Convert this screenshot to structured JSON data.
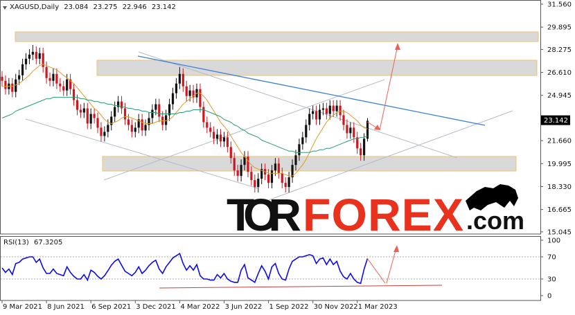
{
  "chart_data": [
    {
      "type": "candlestick",
      "title": "XAGUSD,Daily",
      "header_values": [
        23.084,
        23.275,
        22.946,
        23.142
      ],
      "last_price": 23.142,
      "categories": [
        "9 Mar 2021",
        null,
        null,
        null,
        null,
        null,
        null,
        null,
        null,
        null,
        null,
        null,
        null,
        "8 Jun 2021",
        null,
        null,
        null,
        null,
        null,
        null,
        null,
        null,
        null,
        null,
        null,
        null,
        "6 Sep 2021",
        null,
        null,
        null,
        null,
        null,
        null,
        null,
        null,
        null,
        null,
        null,
        null,
        "3 Dec 2021",
        null,
        null,
        null,
        null,
        null,
        null,
        null,
        null,
        null,
        null,
        null,
        null,
        "4 Mar 2022",
        null,
        null,
        null,
        null,
        null,
        null,
        null,
        null,
        null,
        null,
        null,
        null,
        "3 Jun 2022",
        null,
        null,
        null,
        null,
        null,
        null,
        null,
        null,
        null,
        null,
        null,
        null,
        "1 Sep 2022",
        null,
        null,
        null,
        null,
        null,
        null,
        null,
        null,
        null,
        null,
        null,
        null,
        "30 Nov 2022",
        null,
        null,
        null,
        null,
        null,
        null,
        null,
        null,
        null,
        null,
        null,
        null,
        "1 Mar 2023",
        null,
        null,
        null
      ],
      "open": [
        26.3,
        26.0,
        25.4,
        25.8,
        25.2,
        26.1,
        26.4,
        27.2,
        27.6,
        27.9,
        28.1,
        27.6,
        28.0,
        27.0,
        26.2,
        26.0,
        26.5,
        25.8,
        25.6,
        25.3,
        26.1,
        25.4,
        24.6,
        23.9,
        23.7,
        24.0,
        22.9,
        23.6,
        23.3,
        22.6,
        22.0,
        22.3,
        22.8,
        23.4,
        24.1,
        24.5,
        24.0,
        23.2,
        22.8,
        22.3,
        22.6,
        23.2,
        22.4,
        22.8,
        23.3,
        23.9,
        24.3,
        23.4,
        22.8,
        23.5,
        24.3,
        25.1,
        25.8,
        26.5,
        25.6,
        24.9,
        25.3,
        24.8,
        25.4,
        24.1,
        23.0,
        22.6,
        22.3,
        21.8,
        22.1,
        21.6,
        21.9,
        21.2,
        20.4,
        19.5,
        19.1,
        19.9,
        20.5,
        19.4,
        18.8,
        18.3,
        18.9,
        19.6,
        19.2,
        18.6,
        19.5,
        20.0,
        19.3,
        18.6,
        18.3,
        19.0,
        19.9,
        20.6,
        21.4,
        21.9,
        22.8,
        23.6,
        23.8,
        23.2,
        23.9,
        24.0,
        23.6,
        24.2,
        23.8,
        24.2,
        23.5,
        22.8,
        22.2,
        22.6,
        21.9,
        21.1,
        20.6,
        21.8
      ],
      "high": [
        26.7,
        26.4,
        26.2,
        26.2,
        26.5,
        26.8,
        27.6,
        28.0,
        28.3,
        28.6,
        28.5,
        28.4,
        28.4,
        27.4,
        26.6,
        26.9,
        26.9,
        26.2,
        26.0,
        26.5,
        26.5,
        25.8,
        25.0,
        24.3,
        24.4,
        24.4,
        24.0,
        24.0,
        23.7,
        23.0,
        22.7,
        23.2,
        23.8,
        24.5,
        24.9,
        24.9,
        24.4,
        23.6,
        23.2,
        23.0,
        23.6,
        23.6,
        23.2,
        23.7,
        24.3,
        24.7,
        24.7,
        23.8,
        23.9,
        24.7,
        25.5,
        26.2,
        27.0,
        26.9,
        26.0,
        25.7,
        25.7,
        25.8,
        25.8,
        24.5,
        23.4,
        23.0,
        22.7,
        22.5,
        22.5,
        22.3,
        22.3,
        21.6,
        20.8,
        19.9,
        20.3,
        20.9,
        20.9,
        19.8,
        19.2,
        19.3,
        20.0,
        20.0,
        19.6,
        19.9,
        20.4,
        20.4,
        19.7,
        19.0,
        19.4,
        20.3,
        21.0,
        21.8,
        22.3,
        23.2,
        24.0,
        24.2,
        24.2,
        24.3,
        24.4,
        24.4,
        24.6,
        24.6,
        24.6,
        24.6,
        23.9,
        23.2,
        23.0,
        23.0,
        22.3,
        21.5,
        22.2,
        23.3
      ],
      "low": [
        25.6,
        25.0,
        25.0,
        24.8,
        24.8,
        25.7,
        26.0,
        26.8,
        27.2,
        27.5,
        27.2,
        27.2,
        26.6,
        25.8,
        25.6,
        25.6,
        25.4,
        25.2,
        24.9,
        24.9,
        25.0,
        24.2,
        23.5,
        23.3,
        23.3,
        22.5,
        22.5,
        22.9,
        22.2,
        21.6,
        21.6,
        21.9,
        22.4,
        23.0,
        23.7,
        23.6,
        22.8,
        22.4,
        21.9,
        21.9,
        22.2,
        22.0,
        22.0,
        22.4,
        22.9,
        23.5,
        23.0,
        22.4,
        22.4,
        23.1,
        23.9,
        24.7,
        25.4,
        25.2,
        24.5,
        24.5,
        24.4,
        24.4,
        23.7,
        22.6,
        22.2,
        21.9,
        21.4,
        21.4,
        21.2,
        21.2,
        20.8,
        20.0,
        19.1,
        18.7,
        18.7,
        19.5,
        19.0,
        18.4,
        17.9,
        17.9,
        18.5,
        18.8,
        18.2,
        18.2,
        19.1,
        18.9,
        18.2,
        17.9,
        17.9,
        18.6,
        19.5,
        20.2,
        21.0,
        21.5,
        22.4,
        23.2,
        22.8,
        22.8,
        23.5,
        23.2,
        23.2,
        23.4,
        23.4,
        23.1,
        22.4,
        21.8,
        21.8,
        21.5,
        20.7,
        20.2,
        20.2,
        21.6
      ],
      "close": [
        26.0,
        25.4,
        25.8,
        25.2,
        26.1,
        26.4,
        27.2,
        27.6,
        27.9,
        28.1,
        27.6,
        28.0,
        27.0,
        26.2,
        26.0,
        26.5,
        25.8,
        25.6,
        25.3,
        26.1,
        25.4,
        24.6,
        23.9,
        23.7,
        24.0,
        22.9,
        23.6,
        23.3,
        22.6,
        22.0,
        22.3,
        22.8,
        23.4,
        24.1,
        24.5,
        24.0,
        23.2,
        22.8,
        22.3,
        22.6,
        23.2,
        22.4,
        22.8,
        23.3,
        23.9,
        24.3,
        23.4,
        22.8,
        23.5,
        24.3,
        25.1,
        25.8,
        26.5,
        25.6,
        24.9,
        25.3,
        24.8,
        25.4,
        24.1,
        23.0,
        22.6,
        22.3,
        21.8,
        22.1,
        21.6,
        21.9,
        21.2,
        20.4,
        19.5,
        19.1,
        19.9,
        20.5,
        19.4,
        18.8,
        18.3,
        18.9,
        19.6,
        19.2,
        18.6,
        19.5,
        20.0,
        19.3,
        18.6,
        18.3,
        19.0,
        19.9,
        20.6,
        21.4,
        21.9,
        22.8,
        23.6,
        23.8,
        23.2,
        23.9,
        24.0,
        23.6,
        24.2,
        23.8,
        24.2,
        23.5,
        22.8,
        22.2,
        22.6,
        21.9,
        21.1,
        20.6,
        21.8,
        23.1
      ],
      "colors": {
        "up": "#111111",
        "down": "#d0161e"
      },
      "overlays": [
        {
          "color": "#e39a2a",
          "values": [
            25.6,
            25.6,
            25.6,
            25.6,
            25.7,
            25.8,
            26.0,
            26.2,
            26.4,
            26.7,
            26.9,
            27.1,
            27.2,
            27.1,
            27.0,
            26.9,
            26.8,
            26.6,
            26.4,
            26.2,
            26.0,
            25.8,
            25.5,
            25.2,
            24.9,
            24.6,
            24.3,
            24.0,
            23.8,
            23.5,
            23.2,
            23.0,
            22.9,
            23.0,
            23.1,
            23.3,
            23.4,
            23.4,
            23.3,
            23.2,
            23.1,
            23.0,
            22.9,
            22.9,
            22.9,
            23.0,
            23.1,
            23.1,
            23.1,
            23.2,
            23.4,
            23.7,
            24.0,
            24.3,
            24.5,
            24.7,
            24.9,
            25.1,
            25.1,
            24.9,
            24.6,
            24.2,
            23.8,
            23.4,
            23.0,
            22.7,
            22.4,
            22.0,
            21.6,
            21.2,
            20.8,
            20.5,
            20.2,
            19.9,
            19.7,
            19.6,
            19.5,
            19.4,
            19.3,
            19.3,
            19.3,
            19.3,
            19.3,
            19.2,
            19.1,
            19.1,
            19.3,
            19.6,
            19.9,
            20.3,
            20.8,
            21.3,
            21.8,
            22.2,
            22.6,
            23.0,
            23.3,
            23.5,
            23.7,
            23.8,
            23.8,
            23.7,
            23.5,
            23.3,
            23.1,
            22.8,
            22.6,
            22.5
          ]
        },
        {
          "color": "#2a9a78",
          "values": [
            23.3,
            23.4,
            23.5,
            23.6,
            23.8,
            23.9,
            24.0,
            24.1,
            24.2,
            24.3,
            24.4,
            24.5,
            24.6,
            24.7,
            24.7,
            24.8,
            24.8,
            24.8,
            24.8,
            24.8,
            24.8,
            24.8,
            24.8,
            24.7,
            24.7,
            24.6,
            24.6,
            24.5,
            24.5,
            24.4,
            24.4,
            24.3,
            24.3,
            24.2,
            24.2,
            24.1,
            24.1,
            24.0,
            24.0,
            23.9,
            23.9,
            23.8,
            23.8,
            23.7,
            23.7,
            23.7,
            23.6,
            23.6,
            23.6,
            23.6,
            23.6,
            23.6,
            23.7,
            23.7,
            23.8,
            23.8,
            23.9,
            23.9,
            23.9,
            23.9,
            23.8,
            23.7,
            23.6,
            23.5,
            23.4,
            23.2,
            23.1,
            23.0,
            22.8,
            22.7,
            22.5,
            22.4,
            22.2,
            22.1,
            22.0,
            21.9,
            21.7,
            21.6,
            21.5,
            21.4,
            21.3,
            21.2,
            21.1,
            21.0,
            20.9,
            20.9,
            20.8,
            20.8,
            20.8,
            20.8,
            20.8,
            20.9,
            20.9,
            21.0,
            21.0,
            21.1,
            21.1,
            21.2,
            21.3,
            21.4,
            21.5,
            21.6,
            21.7,
            21.8,
            21.8,
            21.9,
            21.9,
            22.0
          ]
        }
      ],
      "ylim": [
        14.89,
        31.76
      ],
      "yticks": [
        {
          "value": 31.56,
          "label": "31.560"
        },
        29.895,
        28.275,
        {
          "value": 26.61,
          "label": "26.610"
        },
        24.945,
        {
          "value": 21.66,
          "label": "21.660"
        },
        19.995,
        {
          "value": 18.33,
          "label": "18.330"
        },
        16.665,
        15.045
      ]
    },
    {
      "type": "line",
      "title": "RSI(13)",
      "current_value": 67.3205,
      "color": "#0a0aee",
      "values": [
        50,
        42,
        48,
        38,
        58,
        60,
        66,
        68,
        70,
        70,
        60,
        66,
        50,
        40,
        40,
        48,
        40,
        38,
        36,
        52,
        42,
        35,
        30,
        30,
        38,
        28,
        46,
        42,
        35,
        30,
        36,
        45,
        55,
        62,
        66,
        55,
        44,
        40,
        36,
        42,
        52,
        40,
        46,
        54,
        60,
        64,
        48,
        40,
        52,
        60,
        68,
        72,
        76,
        58,
        46,
        54,
        46,
        56,
        36,
        30,
        30,
        28,
        28,
        38,
        32,
        40,
        30,
        26,
        24,
        24,
        46,
        56,
        32,
        28,
        24,
        40,
        54,
        44,
        30,
        52,
        58,
        40,
        30,
        28,
        48,
        62,
        66,
        70,
        70,
        72,
        74,
        72,
        58,
        66,
        68,
        56,
        66,
        56,
        62,
        44,
        34,
        30,
        40,
        30,
        24,
        22,
        48,
        67.3
      ],
      "ylim": [
        -8.75,
        107.5
      ],
      "yticks": [
        100,
        70,
        30,
        0
      ],
      "levels": [
        70,
        30
      ]
    }
  ],
  "watermark": {
    "first": "TOR",
    "second": "FOREX",
    "third": ".com"
  }
}
